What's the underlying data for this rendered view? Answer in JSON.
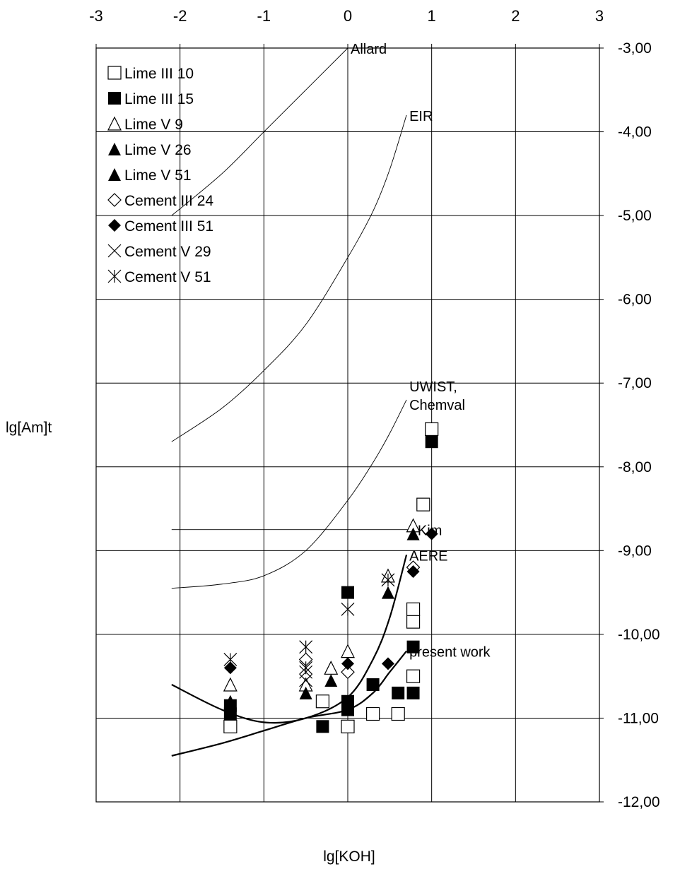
{
  "chart_data": {
    "type": "scatter",
    "title": "",
    "xlabel": "lg[KOH]",
    "ylabel": "lg[Am]t",
    "xlim": [
      -3,
      3
    ],
    "ylim": [
      -12,
      -3
    ],
    "x_axis_position": "top",
    "y_axis_position": "right",
    "grid": true,
    "legend_position": "top-left",
    "x_ticks": [
      -3,
      -2,
      -1,
      0,
      1,
      2,
      3
    ],
    "x_tick_labels": [
      "-3",
      "-2",
      "-1",
      "0",
      "1",
      "2",
      "3"
    ],
    "y_ticks": [
      -3,
      -4,
      -5,
      -6,
      -7,
      -8,
      -9,
      -10,
      -11,
      -12
    ],
    "y_tick_labels": [
      "-3,00",
      "-4,00",
      "-5,00",
      "-6,00",
      "-7,00",
      "-8,00",
      "-9,00",
      "-10,00",
      "-11,00",
      "-12,00"
    ],
    "series": [
      {
        "name": "Lime III 10",
        "marker": "square-open",
        "x": [
          -1.4,
          -0.3,
          0,
          0.3,
          0.6,
          0.78,
          0.78,
          0.78,
          0.9,
          1.0
        ],
        "y": [
          -11.1,
          -10.8,
          -11.1,
          -10.95,
          -10.95,
          -10.5,
          -9.85,
          -9.7,
          -8.45,
          -7.55
        ]
      },
      {
        "name": "Lime III 15",
        "marker": "square-filled",
        "x": [
          -1.4,
          -1.4,
          -0.3,
          0,
          0,
          0,
          0.3,
          0.6,
          0.78,
          0.78,
          1.0
        ],
        "y": [
          -10.95,
          -10.85,
          -11.1,
          -10.9,
          -10.8,
          -9.5,
          -10.6,
          -10.7,
          -10.7,
          -10.15,
          -7.7
        ]
      },
      {
        "name": "Lime V 9",
        "marker": "triangle-open",
        "x": [
          -1.4,
          -0.5,
          -0.2,
          0,
          0.48,
          0.78
        ],
        "y": [
          -10.6,
          -10.6,
          -10.4,
          -10.2,
          -9.3,
          -8.7
        ]
      },
      {
        "name": "Lime V 26",
        "marker": "triangle-filled",
        "x": [
          -1.4,
          -0.5,
          -0.2
        ],
        "y": [
          -10.8,
          -10.7,
          -10.55
        ]
      },
      {
        "name": "Lime V 51",
        "marker": "triangle-filled",
        "x": [
          0.48,
          0.78
        ],
        "y": [
          -9.5,
          -8.8
        ]
      },
      {
        "name": "Cement III 24",
        "marker": "diamond-open",
        "x": [
          -0.5,
          0,
          0.78
        ],
        "y": [
          -10.3,
          -10.45,
          -9.2
        ]
      },
      {
        "name": "Cement III 51",
        "marker": "diamond-filled",
        "x": [
          -1.4,
          0,
          0.48,
          0.78,
          1.0
        ],
        "y": [
          -10.4,
          -10.35,
          -10.35,
          -9.25,
          -8.8
        ]
      },
      {
        "name": "Cement V 29",
        "marker": "x",
        "x": [
          -0.5,
          -0.5
        ],
        "y": [
          -10.45,
          -10.55
        ]
      },
      {
        "name": "Cement V 51",
        "marker": "asterisk",
        "x": [
          -1.4,
          -0.5,
          -0.5,
          0,
          0.48
        ],
        "y": [
          -10.3,
          -10.15,
          -10.4,
          -9.7,
          -9.35
        ]
      }
    ],
    "curves": [
      {
        "label": "Allard",
        "x": [
          -2.1,
          -1.5,
          -1.0,
          -0.5,
          0.0
        ],
        "y": [
          -5.0,
          -4.5,
          -4.0,
          -3.5,
          -3.0
        ]
      },
      {
        "label": "EIR",
        "x": [
          -2.1,
          -1.5,
          -1.0,
          -0.5,
          0.0,
          0.3,
          0.5,
          0.7
        ],
        "y": [
          -7.7,
          -7.3,
          -6.85,
          -6.3,
          -5.5,
          -4.95,
          -4.45,
          -3.8
        ]
      },
      {
        "label": "UWIST,\nChemval",
        "x": [
          -2.1,
          -1.5,
          -1.0,
          -0.5,
          0.0,
          0.3,
          0.5,
          0.7
        ],
        "y": [
          -9.45,
          -9.4,
          -9.3,
          -9.0,
          -8.4,
          -7.95,
          -7.6,
          -7.2
        ]
      },
      {
        "label": "Kim",
        "x": [
          -2.1,
          0.8
        ],
        "y": [
          -8.75,
          -8.75
        ]
      },
      {
        "label": "AERE",
        "x": [
          -2.1,
          -1.5,
          -1.0,
          -0.5,
          0.0,
          0.3,
          0.5,
          0.7
        ],
        "y": [
          -10.6,
          -10.9,
          -11.05,
          -11.0,
          -10.75,
          -10.3,
          -9.8,
          -9.05
        ],
        "bold": true
      },
      {
        "label": "present work",
        "x": [
          -2.1,
          -1.5,
          -1.0,
          -0.5,
          0.0,
          0.3,
          0.5,
          0.7
        ],
        "y": [
          -11.45,
          -11.3,
          -11.15,
          -11.0,
          -10.9,
          -10.7,
          -10.45,
          -10.2
        ],
        "bold": true
      }
    ]
  }
}
